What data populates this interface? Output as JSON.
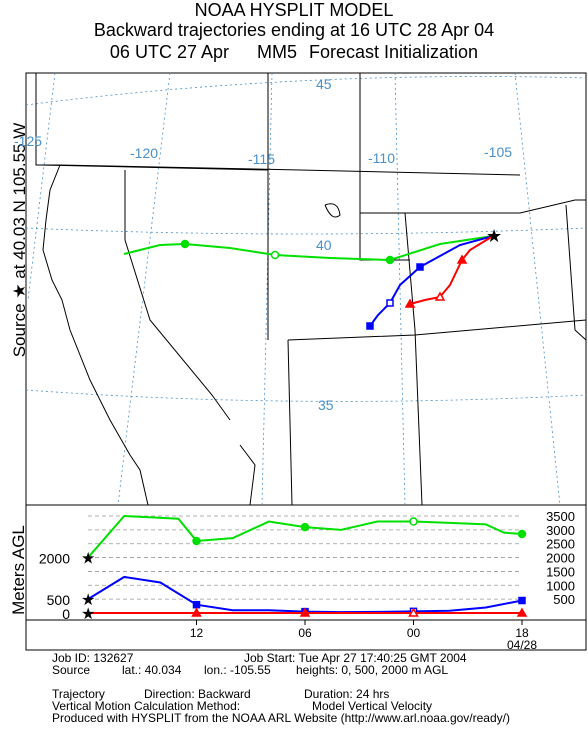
{
  "header": {
    "title": "NOAA HYSPLIT MODEL",
    "subtitle": "Backward trajectories ending at 16 UTC 28 Apr 04",
    "init_time": "06 UTC 27 Apr",
    "init_model": "MM5",
    "init_label": "Forecast Initialization"
  },
  "source_label": {
    "prefix": "Source",
    "at": "at",
    "lat": "40.03 N",
    "lon": "105.55 W"
  },
  "map": {
    "lon_labels": [
      "-125",
      "-120",
      "-115",
      "-110",
      "-105"
    ],
    "lat_labels": [
      "45",
      "40",
      "35"
    ]
  },
  "chart_data": {
    "type": "line",
    "title": "Backward trajectories ending at 16 UTC 28 Apr 04",
    "ylabel": "Meters AGL",
    "y_ticks_right": [
      "3500",
      "3000",
      "2500",
      "2000",
      "1500",
      "1000",
      "500"
    ],
    "y_ticks_left": [
      "2000",
      "500",
      "0"
    ],
    "ylim": [
      0,
      3500
    ],
    "x_ticks": [
      "12",
      "06",
      "00",
      "18"
    ],
    "x_date": "04/28",
    "series": [
      {
        "name": "2000",
        "color": "#00e000",
        "marker": "circle",
        "hours": [
          -24,
          -22,
          -19,
          -18,
          -16,
          -14,
          -12,
          -10,
          -9,
          -8,
          -6,
          -4,
          -2,
          -1,
          0
        ],
        "values": [
          2000,
          3500,
          3400,
          2600,
          2700,
          3300,
          3100,
          3000,
          3150,
          3300,
          3300,
          3250,
          3200,
          2900,
          2850
        ]
      },
      {
        "name": "500",
        "color": "#0000ff",
        "marker": "square",
        "hours": [
          -24,
          -22,
          -20,
          -18,
          -16,
          -14,
          -12,
          -10,
          -8,
          -6,
          -4,
          -2,
          0
        ],
        "values": [
          500,
          1300,
          1100,
          300,
          100,
          100,
          50,
          30,
          40,
          60,
          80,
          200,
          450
        ]
      },
      {
        "name": "0",
        "color": "#ff0000",
        "marker": "triangle",
        "hours": [
          -24,
          -18,
          -12,
          -6,
          0
        ],
        "values": [
          0,
          0,
          0,
          0,
          0
        ]
      }
    ]
  },
  "info": {
    "job_id": "Job ID: 132627",
    "job_start": "Job Start: Tue Apr 27 17:40:25 GMT 2004",
    "source_label": "Source",
    "lat": "lat.: 40.034",
    "lon": "lon.: -105.55",
    "heights": "heights: 0, 500, 2000 m AGL",
    "trajectory_label": "Trajectory",
    "direction": "Direction: Backward",
    "duration": "Duration: 24 hrs",
    "vertical_label": "Vertical Motion Calculation Method:",
    "vertical_value": "Model Vertical Velocity",
    "produced": "Produced with HYSPLIT from the NOAA ARL Website (http://www.arl.noaa.gov/ready/)"
  }
}
